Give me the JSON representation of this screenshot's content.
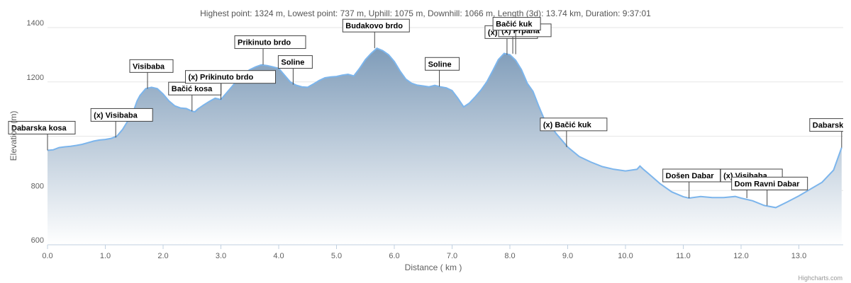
{
  "title": "Highest point: 1324 m, Lowest point: 737 m, Uphill: 1075 m, Downhill: 1066 m, Length (3d): 13.74 km, Duration: 9:37:01",
  "credit": "Highcharts.com",
  "colors": {
    "line": "#7cb5ec",
    "fill_top": "#7f9cb9",
    "fill_bottom": "#ffffff",
    "annotation_border": "#444444"
  },
  "chart_data": {
    "type": "area",
    "title": "Highest point: 1324 m, Lowest point: 737 m, Uphill: 1075 m, Downhill: 1066 m, Length (3d): 13.74 km, Duration: 9:37:01",
    "xlabel": "Distance ( km )",
    "ylabel": "Elevation (m)",
    "xlim": [
      0,
      13.74
    ],
    "ylim": [
      600,
      1400
    ],
    "x_ticks": [
      "0.0",
      "1.0",
      "2.0",
      "3.0",
      "4.0",
      "5.0",
      "6.0",
      "7.0",
      "8.0",
      "9.0",
      "10.0",
      "11.0",
      "12.0",
      "13.0"
    ],
    "y_ticks": [
      "600",
      "800",
      "1000",
      "1200",
      "1400"
    ],
    "grid": true,
    "series": [
      {
        "x": [
          0.0,
          0.1,
          0.2,
          0.3,
          0.4,
          0.5,
          0.6,
          0.7,
          0.8,
          0.9,
          1.0,
          1.1,
          1.2,
          1.3,
          1.4,
          1.5,
          1.55,
          1.6,
          1.7,
          1.8,
          1.9,
          2.0,
          2.1,
          2.2,
          2.3,
          2.4,
          2.5,
          2.55,
          2.6,
          2.7,
          2.8,
          2.9,
          3.0,
          3.1,
          3.2,
          3.3,
          3.4,
          3.5,
          3.6,
          3.7,
          3.8,
          3.9,
          4.0,
          4.1,
          4.2,
          4.3,
          4.4,
          4.5,
          4.6,
          4.7,
          4.8,
          4.9,
          5.0,
          5.1,
          5.2,
          5.3,
          5.4,
          5.5,
          5.6,
          5.7,
          5.8,
          5.9,
          6.0,
          6.1,
          6.2,
          6.3,
          6.4,
          6.5,
          6.6,
          6.7,
          6.8,
          6.9,
          7.0,
          7.1,
          7.2,
          7.3,
          7.4,
          7.5,
          7.6,
          7.7,
          7.8,
          7.9,
          8.0,
          8.1,
          8.2,
          8.3,
          8.4,
          8.5,
          8.6,
          8.7,
          8.8,
          8.9,
          9.0,
          9.2,
          9.4,
          9.6,
          9.8,
          10.0,
          10.2,
          10.25,
          10.3,
          10.4,
          10.6,
          10.8,
          11.0,
          11.1,
          11.3,
          11.5,
          11.7,
          11.9,
          12.0,
          12.2,
          12.4,
          12.6,
          12.8,
          13.0,
          13.2,
          13.4,
          13.6,
          13.74
        ],
        "y": [
          948,
          950,
          958,
          961,
          963,
          966,
          970,
          976,
          982,
          986,
          988,
          992,
          1000,
          1025,
          1060,
          1100,
          1130,
          1150,
          1175,
          1180,
          1175,
          1155,
          1130,
          1112,
          1104,
          1102,
          1092,
          1090,
          1100,
          1115,
          1128,
          1140,
          1135,
          1160,
          1185,
          1210,
          1230,
          1245,
          1255,
          1263,
          1260,
          1255,
          1250,
          1225,
          1200,
          1188,
          1182,
          1180,
          1192,
          1205,
          1215,
          1218,
          1220,
          1225,
          1228,
          1222,
          1250,
          1282,
          1305,
          1324,
          1315,
          1300,
          1275,
          1240,
          1210,
          1195,
          1188,
          1185,
          1182,
          1187,
          1182,
          1178,
          1168,
          1140,
          1108,
          1122,
          1145,
          1170,
          1200,
          1240,
          1282,
          1305,
          1300,
          1280,
          1245,
          1195,
          1165,
          1110,
          1060,
          1040,
          1010,
          985,
          960,
          925,
          905,
          888,
          878,
          872,
          878,
          890,
          880,
          862,
          825,
          795,
          777,
          772,
          778,
          774,
          774,
          778,
          772,
          762,
          745,
          737,
          758,
          780,
          805,
          830,
          875,
          958
        ]
      }
    ],
    "annotations": [
      {
        "label": "Dabarska kosa",
        "x": 0.0,
        "y": 948
      },
      {
        "label": "(x) Visibaba",
        "x": 1.18,
        "y": 995
      },
      {
        "label": "Visibaba",
        "x": 1.73,
        "y": 1175
      },
      {
        "label": "Bačić kosa",
        "x": 2.5,
        "y": 1092
      },
      {
        "label": "(x) Prikinuto brdo",
        "x": 3.0,
        "y": 1135
      },
      {
        "label": "Prikinuto brdo",
        "x": 3.73,
        "y": 1263
      },
      {
        "label": "Soline",
        "x": 4.25,
        "y": 1190
      },
      {
        "label": "Budakovo brdo",
        "x": 5.66,
        "y": 1324
      },
      {
        "label": "Soline",
        "x": 6.78,
        "y": 1183
      },
      {
        "label": "(x) Prpana",
        "x": 7.95,
        "y": 1300
      },
      {
        "label": "(x) Prpana",
        "x": 8.05,
        "y": 1304
      },
      {
        "label": "Bačić kuk",
        "x": 8.1,
        "y": 1302
      },
      {
        "label": "(x) Bačić kuk",
        "x": 8.98,
        "y": 960
      },
      {
        "label": "Došen Dabar",
        "x": 11.1,
        "y": 772
      },
      {
        "label": "(x) Visibaba",
        "x": 12.1,
        "y": 772
      },
      {
        "label": "Dom Ravni Dabar",
        "x": 12.45,
        "y": 745
      },
      {
        "label": "Dabarsko",
        "x": 13.74,
        "y": 958
      }
    ]
  }
}
